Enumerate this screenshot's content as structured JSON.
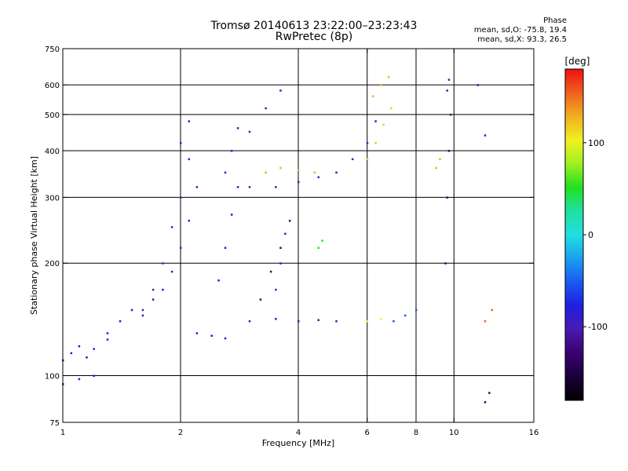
{
  "header": {
    "title_line1": "Tromsø 20140613 23:22:00–23:23:43",
    "title_line2": "RwPretec (8p)",
    "phase_title": "Phase",
    "phase_o": "mean, sd,O: -75.8, 19.4",
    "phase_x": "mean, sd,X:  93.3, 26.5"
  },
  "colors": {
    "background": "#ffffff",
    "grid": "#000000",
    "colormap": [
      "#000000",
      "#1a003a",
      "#3b0070",
      "#4a1ab0",
      "#1f1fe0",
      "#1a5af0",
      "#1aa0f0",
      "#20e0e0",
      "#20e0a0",
      "#20e020",
      "#a0f020",
      "#f0f020",
      "#f0b020",
      "#f06020",
      "#f01010"
    ]
  },
  "chart_data": {
    "type": "scatter",
    "xlabel": "Frequency [MHz]",
    "ylabel": "Stationary phase Virtual Height [km]",
    "x_scale": "log",
    "y_scale": "log",
    "xlim": [
      1,
      16
    ],
    "ylim": [
      75,
      750
    ],
    "x_ticks": [
      1,
      2,
      4,
      6,
      8,
      10,
      16
    ],
    "y_ticks": [
      75,
      100,
      200,
      300,
      400,
      500,
      600,
      750
    ],
    "grid": true,
    "colorbar": {
      "unit": "[deg]",
      "range": [
        -180,
        180
      ],
      "ticks": [
        100,
        0,
        -100
      ]
    },
    "series": [
      {
        "x": [
          1.0,
          1.05,
          1.1,
          1.15,
          1.2,
          1.3
        ],
        "y": [
          110,
          115,
          120,
          112,
          118,
          125
        ],
        "phase": -80
      },
      {
        "x": [
          1.0,
          1.1,
          1.2
        ],
        "y": [
          95,
          98,
          100
        ],
        "phase": -70
      },
      {
        "x": [
          1.3,
          1.4,
          1.5,
          1.6,
          1.7,
          1.8
        ],
        "y": [
          130,
          140,
          150,
          145,
          160,
          170
        ],
        "phase": -90
      },
      {
        "x": [
          1.6,
          1.7,
          1.8,
          1.9,
          2.0,
          2.1
        ],
        "y": [
          150,
          170,
          200,
          250,
          300,
          380
        ],
        "phase": -100
      },
      {
        "x": [
          1.9,
          2.0,
          2.1,
          2.2
        ],
        "y": [
          190,
          220,
          260,
          320
        ],
        "phase": -95
      },
      {
        "x": [
          2.0,
          2.1
        ],
        "y": [
          420,
          480
        ],
        "phase": -105
      },
      {
        "x": [
          2.5,
          2.6,
          2.7,
          2.8
        ],
        "y": [
          180,
          220,
          270,
          320
        ],
        "phase": -85
      },
      {
        "x": [
          2.6,
          2.7,
          2.8
        ],
        "y": [
          350,
          400,
          460
        ],
        "phase": -100
      },
      {
        "x": [
          2.2,
          2.4,
          2.6
        ],
        "y": [
          130,
          128,
          126
        ],
        "phase": -90
      },
      {
        "x": [
          3.0,
          3.5,
          4.0,
          4.5,
          5.0
        ],
        "y": [
          140,
          142,
          140,
          141,
          140
        ],
        "phase": -110
      },
      {
        "x": [
          3.2,
          3.4,
          3.6,
          3.8
        ],
        "y": [
          160,
          190,
          220,
          260
        ],
        "phase": -120
      },
      {
        "x": [
          3.5,
          3.6,
          3.7
        ],
        "y": [
          170,
          200,
          240
        ],
        "phase": -110
      },
      {
        "x": [
          3.0,
          3.5,
          4.0,
          4.5
        ],
        "y": [
          320,
          320,
          330,
          340
        ],
        "phase": -110
      },
      {
        "x": [
          3.3,
          3.6,
          4.0,
          4.4
        ],
        "y": [
          350,
          360,
          355,
          350
        ],
        "phase": 140
      },
      {
        "x": [
          4.5,
          4.6
        ],
        "y": [
          220,
          230
        ],
        "phase": 60
      },
      {
        "x": [
          3.0,
          3.3,
          3.6
        ],
        "y": [
          450,
          520,
          580
        ],
        "phase": -100
      },
      {
        "x": [
          5.0,
          5.5,
          6.0,
          6.3
        ],
        "y": [
          350,
          380,
          420,
          480
        ],
        "phase": -100
      },
      {
        "x": [
          6.0,
          6.3,
          6.6,
          6.9
        ],
        "y": [
          380,
          420,
          470,
          520
        ],
        "phase": 80
      },
      {
        "x": [
          6.2,
          6.5,
          6.8
        ],
        "y": [
          560,
          600,
          630
        ],
        "phase": 130
      },
      {
        "x": [
          6.0,
          6.5
        ],
        "y": [
          140,
          142
        ],
        "phase": 110
      },
      {
        "x": [
          7.0,
          7.5,
          8.0
        ],
        "y": [
          140,
          145,
          150
        ],
        "phase": -60
      },
      {
        "x": [
          9.5,
          9.6,
          9.7,
          9.8
        ],
        "y": [
          200,
          300,
          400,
          500
        ],
        "phase": -120
      },
      {
        "x": [
          9.6,
          9.7
        ],
        "y": [
          580,
          620
        ],
        "phase": -110
      },
      {
        "x": [
          9.0,
          9.2
        ],
        "y": [
          360,
          380
        ],
        "phase": 130
      },
      {
        "x": [
          11.5,
          12.0
        ],
        "y": [
          600,
          440
        ],
        "phase": -90
      },
      {
        "x": [
          12.0,
          12.5
        ],
        "y": [
          140,
          150
        ],
        "phase": 150
      },
      {
        "x": [
          12.0,
          12.3
        ],
        "y": [
          85,
          90
        ],
        "phase": -130
      }
    ]
  }
}
